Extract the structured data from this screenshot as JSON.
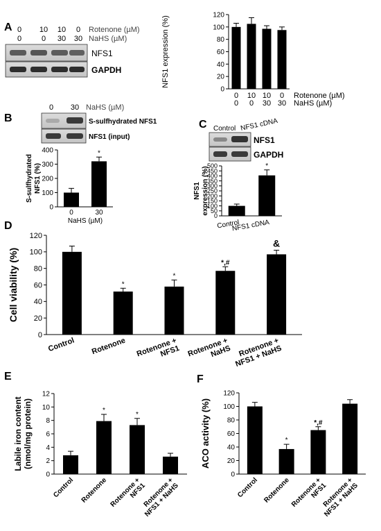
{
  "panels": {
    "A": {
      "letter": "A",
      "row1": [
        "0",
        "10",
        "10",
        "0"
      ],
      "row2": [
        "0",
        "0",
        "30",
        "30"
      ],
      "row1_label": "Rotenone (µM)",
      "row2_label": "NaHS (µM)",
      "blot_labels": [
        "NFS1",
        "GAPDH"
      ]
    },
    "B": {
      "letter": "B",
      "lanes": [
        "0",
        "30"
      ],
      "lane_label": "NaHS (µM)",
      "blot_labels": [
        "S-sulfhydrated NFS1",
        "NFS1 (input)"
      ]
    },
    "C": {
      "letter": "C",
      "lanes": [
        "Control",
        "NFS1 cDNA"
      ],
      "blot_labels": [
        "NFS1",
        "GAPDH"
      ]
    },
    "D": {
      "letter": "D"
    },
    "E": {
      "letter": "E"
    },
    "F": {
      "letter": "F"
    }
  },
  "chart_data": [
    {
      "id": "A",
      "type": "bar",
      "ylabel": "NFS1 expression (%)",
      "ylim": [
        0,
        120
      ],
      "yticks": [
        0,
        20,
        40,
        60,
        80,
        100,
        120
      ],
      "cat_row1": [
        "0",
        "10",
        "10",
        "0"
      ],
      "cat_row2": [
        "0",
        "0",
        "30",
        "30"
      ],
      "row1_label": "Rotenone (µM)",
      "row2_label": "NaHS (µM)",
      "values": [
        100,
        105,
        97,
        95
      ],
      "errors": [
        6,
        10,
        5,
        5
      ],
      "marks": [
        "",
        "",
        "",
        ""
      ]
    },
    {
      "id": "B",
      "type": "bar",
      "ylabel": "S-sulfhydrated NFS1 (%)",
      "ylim": [
        0,
        400
      ],
      "yticks": [
        0,
        100,
        200,
        300,
        400
      ],
      "categories": [
        "0",
        "30"
      ],
      "xlabel": "NaHS (µM)",
      "values": [
        100,
        320
      ],
      "errors": [
        30,
        30
      ],
      "marks": [
        "",
        "*"
      ]
    },
    {
      "id": "C",
      "type": "bar",
      "ylabel": "NFS1 expression (%)",
      "ylim": [
        0,
        500
      ],
      "yticks": [
        0,
        50,
        100,
        150,
        200,
        250,
        300,
        350,
        400,
        450,
        500
      ],
      "categories": [
        "Control",
        "NFS1 cDNA"
      ],
      "values": [
        100,
        405
      ],
      "errors": [
        18,
        55
      ],
      "marks": [
        "",
        "*"
      ]
    },
    {
      "id": "D",
      "type": "bar",
      "ylabel": "Cell viability (%)",
      "ylim": [
        0,
        120
      ],
      "yticks": [
        0,
        20,
        40,
        60,
        80,
        100,
        120
      ],
      "categories": [
        "Control",
        "Rotenone",
        "Rotenone + NFS1",
        "Rotenone + NaHS",
        "Rotenone + NFS1 + NaHS"
      ],
      "values": [
        100,
        52,
        58,
        77,
        97
      ],
      "errors": [
        7,
        4,
        8,
        5,
        5
      ],
      "marks": [
        "",
        "*",
        "*",
        "*,#",
        "&"
      ]
    },
    {
      "id": "E",
      "type": "bar",
      "ylabel": "Labile iron content (nmol/mg protein)",
      "ylim": [
        0,
        12
      ],
      "yticks": [
        0,
        2,
        4,
        6,
        8,
        10,
        12
      ],
      "categories": [
        "Control",
        "Rotenone",
        "Rotenone + NFS1",
        "Rotenone + NFS1 + NaHS"
      ],
      "values": [
        2.8,
        7.9,
        7.3,
        2.6
      ],
      "errors": [
        0.6,
        1.0,
        1.0,
        0.5
      ],
      "marks": [
        "",
        "*",
        "*",
        ""
      ]
    },
    {
      "id": "F",
      "type": "bar",
      "ylabel": "ACO activity (%)",
      "ylim": [
        0,
        120
      ],
      "yticks": [
        0,
        20,
        40,
        60,
        80,
        100,
        120
      ],
      "categories": [
        "Control",
        "Rotenone",
        "Rotenone + NFS1",
        "Rotenone + NFS1 + NaHS"
      ],
      "values": [
        100,
        37,
        65,
        104
      ],
      "errors": [
        6,
        7,
        5,
        6
      ],
      "marks": [
        "",
        "*",
        "*,#",
        ""
      ]
    }
  ]
}
